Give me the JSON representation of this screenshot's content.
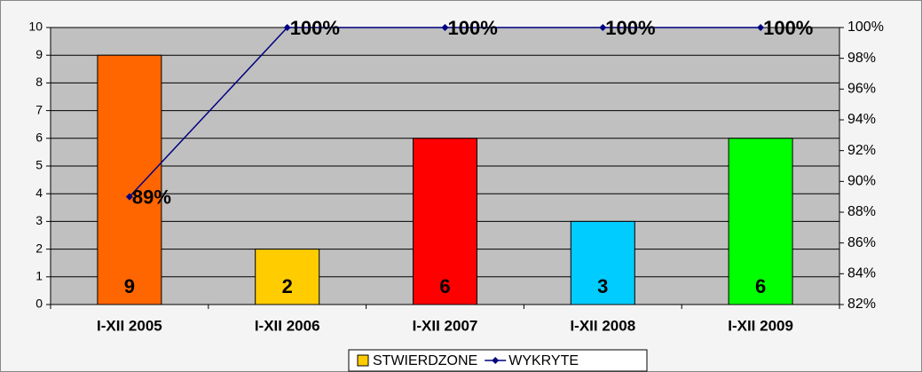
{
  "chart_data": {
    "type": "bar+line",
    "categories": [
      "I-XII 2005",
      "I-XII 2006",
      "I-XII 2007",
      "I-XII 2008",
      "I-XII 2009"
    ],
    "series": [
      {
        "name": "STWIERDZONE",
        "type": "bar",
        "color": "#FFCC00",
        "colors": [
          "#FF6600",
          "#FFCC00",
          "#FF0000",
          "#00CCFF",
          "#00FF00"
        ],
        "values": [
          9,
          2,
          6,
          3,
          6
        ]
      },
      {
        "name": "WYKRYTE",
        "type": "line",
        "axis": "y2",
        "color": "#000080",
        "values": [
          89,
          100,
          100,
          100,
          100
        ],
        "value_labels": [
          "89%",
          "100%",
          "100%",
          "100%",
          "100%"
        ]
      }
    ],
    "ylim": [
      0,
      10
    ],
    "yticks": [
      0,
      1,
      2,
      3,
      4,
      5,
      6,
      7,
      8,
      9,
      10
    ],
    "y2lim": [
      82,
      100
    ],
    "y2ticks": [
      {
        "value": 82,
        "label": "82%"
      },
      {
        "value": 84,
        "label": "84%"
      },
      {
        "value": 86,
        "label": "86%"
      },
      {
        "value": 88,
        "label": "88%"
      },
      {
        "value": 90,
        "label": "90%"
      },
      {
        "value": 92,
        "label": "92%"
      },
      {
        "value": 94,
        "label": "94%"
      },
      {
        "value": 96,
        "label": "96%"
      },
      {
        "value": 98,
        "label": "98%"
      },
      {
        "value": 100,
        "label": "100%"
      }
    ],
    "legend": "bottom"
  }
}
